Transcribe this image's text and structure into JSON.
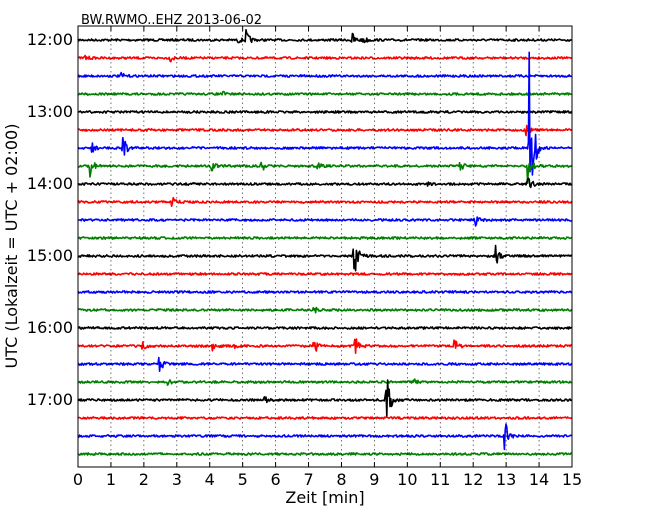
{
  "chart_data": {
    "type": "line",
    "title": "BW.RWMO..EHZ 2013-06-02",
    "xlabel": "Zeit  [min]",
    "ylabel": "UTC (Lokalzeit = UTC + 02:00)",
    "xlim": [
      0,
      15
    ],
    "x_ticks": [
      "0",
      "1",
      "2",
      "3",
      "4",
      "5",
      "6",
      "7",
      "8",
      "9",
      "10",
      "11",
      "12",
      "13",
      "14",
      "15"
    ],
    "y_tick_labels": [
      "12:00",
      "13:00",
      "14:00",
      "15:00",
      "16:00",
      "17:00"
    ],
    "grid": true,
    "trace_colors": [
      "#000000",
      "#ff0000",
      "#0000ff",
      "#008000"
    ],
    "series": [
      {
        "row_start": "12:00",
        "color": "#000000",
        "events": [
          {
            "x": 5.1,
            "amp": 10
          },
          {
            "x": 8.3,
            "amp": 10
          },
          {
            "x": 8.65,
            "amp": 5
          },
          {
            "x": 4.85,
            "amp": 3
          }
        ]
      },
      {
        "row_start": "12:15",
        "color": "#ff0000",
        "events": [
          {
            "x": 0.2,
            "amp": 3
          },
          {
            "x": 2.8,
            "amp": 4
          }
        ]
      },
      {
        "row_start": "12:30",
        "color": "#0000ff",
        "events": [
          {
            "x": 1.3,
            "amp": 3
          }
        ]
      },
      {
        "row_start": "12:45",
        "color": "#008000",
        "events": [
          {
            "x": 4.4,
            "amp": 2
          }
        ]
      },
      {
        "row_start": "13:00",
        "color": "#000000",
        "events": []
      },
      {
        "row_start": "13:15",
        "color": "#ff0000",
        "events": [
          {
            "x": 1.9,
            "amp": 2
          },
          {
            "x": 13.6,
            "amp": 5
          }
        ]
      },
      {
        "row_start": "13:30",
        "color": "#0000ff",
        "events": [
          {
            "x": 0.4,
            "amp": 6
          },
          {
            "x": 1.35,
            "amp": 14
          },
          {
            "x": 13.7,
            "amp": 115
          }
        ]
      },
      {
        "row_start": "13:45",
        "color": "#008000",
        "events": [
          {
            "x": 0.35,
            "amp": 14
          },
          {
            "x": 4.05,
            "amp": 5
          },
          {
            "x": 5.55,
            "amp": 8
          },
          {
            "x": 7.25,
            "amp": 4
          },
          {
            "x": 11.6,
            "amp": 8
          },
          {
            "x": 13.65,
            "amp": 20
          }
        ]
      },
      {
        "row_start": "14:00",
        "color": "#000000",
        "events": [
          {
            "x": 3.5,
            "amp": 3
          },
          {
            "x": 10.6,
            "amp": 2
          },
          {
            "x": 13.65,
            "amp": 12
          }
        ]
      },
      {
        "row_start": "14:15",
        "color": "#ff0000",
        "events": [
          {
            "x": 2.85,
            "amp": 7
          }
        ]
      },
      {
        "row_start": "14:30",
        "color": "#0000ff",
        "events": [
          {
            "x": 12.05,
            "amp": 7
          }
        ]
      },
      {
        "row_start": "14:45",
        "color": "#008000",
        "events": []
      },
      {
        "row_start": "15:00",
        "color": "#000000",
        "events": [
          {
            "x": 8.35,
            "amp": 38
          },
          {
            "x": 12.65,
            "amp": 14
          }
        ]
      },
      {
        "row_start": "15:15",
        "color": "#ff0000",
        "events": []
      },
      {
        "row_start": "15:30",
        "color": "#0000ff",
        "events": []
      },
      {
        "row_start": "15:45",
        "color": "#008000",
        "events": [
          {
            "x": 7.15,
            "amp": 4
          }
        ]
      },
      {
        "row_start": "16:00",
        "color": "#000000",
        "events": []
      },
      {
        "row_start": "16:15",
        "color": "#ff0000",
        "events": [
          {
            "x": 1.95,
            "amp": 4
          },
          {
            "x": 4.05,
            "amp": 6
          },
          {
            "x": 4.75,
            "amp": 2
          },
          {
            "x": 7.15,
            "amp": 11
          },
          {
            "x": 8.4,
            "amp": 11
          },
          {
            "x": 11.4,
            "amp": 12
          }
        ]
      },
      {
        "row_start": "16:30",
        "color": "#0000ff",
        "events": [
          {
            "x": 2.45,
            "amp": 11
          }
        ]
      },
      {
        "row_start": "16:45",
        "color": "#008000",
        "events": [
          {
            "x": 2.7,
            "amp": 3
          },
          {
            "x": 10.2,
            "amp": 3
          }
        ]
      },
      {
        "row_start": "17:00",
        "color": "#000000",
        "events": [
          {
            "x": 5.6,
            "amp": 6
          },
          {
            "x": 9.35,
            "amp": 38
          }
        ]
      },
      {
        "row_start": "17:15",
        "color": "#ff0000",
        "events": []
      },
      {
        "row_start": "17:30",
        "color": "#0000ff",
        "events": [
          {
            "x": 12.95,
            "amp": 18
          }
        ]
      },
      {
        "row_start": "17:45",
        "color": "#008000",
        "events": []
      }
    ]
  }
}
